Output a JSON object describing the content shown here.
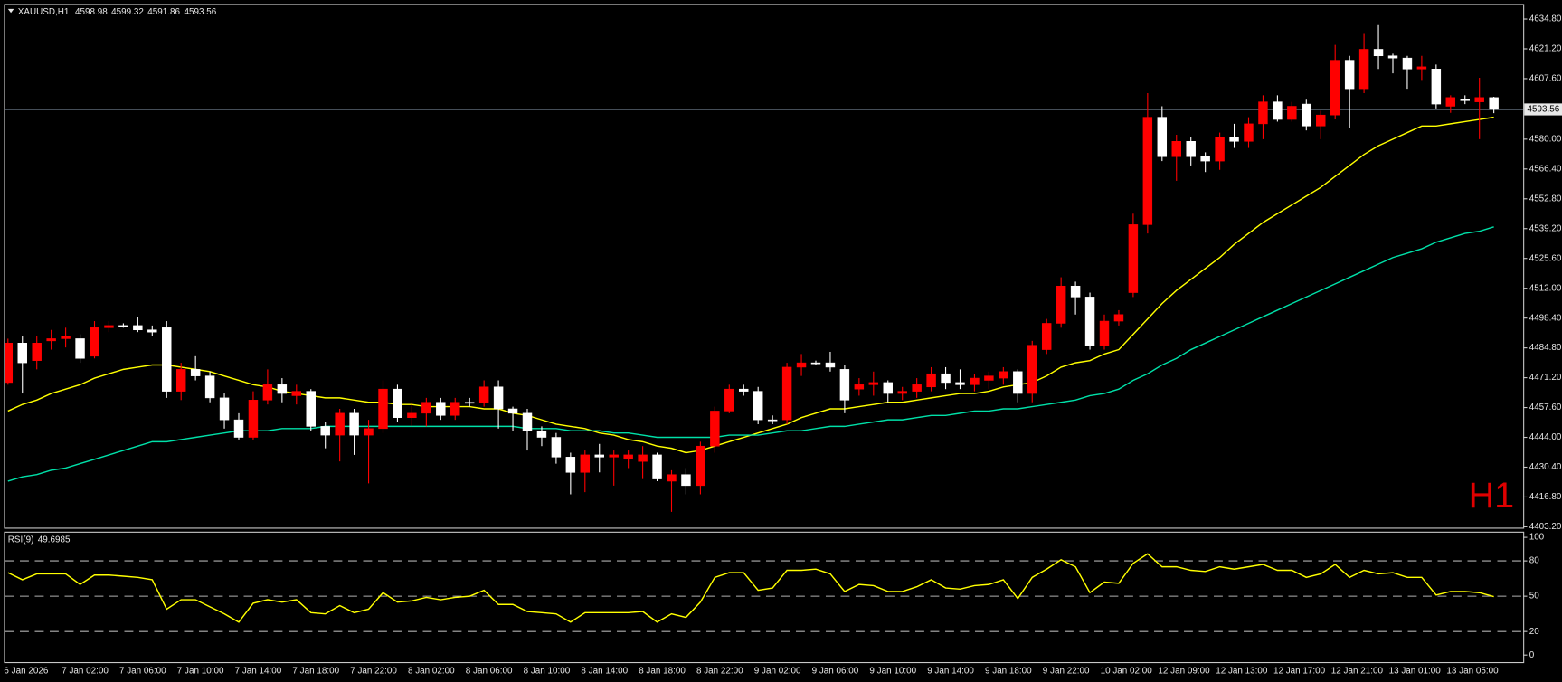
{
  "chart_data": [
    {
      "type": "candlestick",
      "title": "XAUUSD,H1",
      "annotation": "H1",
      "categories": [
        "6 Jan 2026",
        null,
        null,
        null,
        "7 Jan 02:00",
        null,
        null,
        null,
        "7 Jan 06:00",
        null,
        null,
        null,
        "7 Jan 10:00",
        null,
        null,
        null,
        "7 Jan 14:00",
        null,
        null,
        null,
        "7 Jan 18:00",
        null,
        null,
        null,
        "7 Jan 22:00",
        null,
        null,
        null,
        "8 Jan 02:00",
        null,
        null,
        null,
        "8 Jan 06:00",
        null,
        null,
        null,
        "8 Jan 10:00",
        null,
        null,
        null,
        "8 Jan 14:00",
        null,
        null,
        null,
        "8 Jan 18:00",
        null,
        null,
        null,
        "8 Jan 22:00",
        null,
        null,
        null,
        "9 Jan 02:00",
        null,
        null,
        null,
        "9 Jan 06:00",
        null,
        null,
        null,
        "9 Jan 10:00",
        null,
        null,
        null,
        "9 Jan 14:00",
        null,
        null,
        null,
        "9 Jan 18:00",
        null,
        null,
        null,
        "9 Jan 22:00",
        null,
        null,
        null,
        "10 Jan 02:00",
        null,
        null,
        null,
        "12 Jan 09:00",
        null,
        null,
        null,
        "12 Jan 13:00",
        null,
        null,
        null,
        "12 Jan 17:00",
        null,
        null,
        null,
        "12 Jan 21:00",
        null,
        null,
        null,
        "13 Jan 01:00",
        null,
        null,
        null,
        "13 Jan 05:00",
        null,
        null,
        null
      ],
      "open": [
        4469,
        4487,
        4479,
        4488,
        4489,
        4489,
        4481,
        4494,
        4495,
        4495,
        4493,
        4494,
        4465,
        4475,
        4472,
        4462,
        4452,
        4444,
        4461,
        4468,
        4463,
        4465,
        4449,
        4445,
        4455,
        4445,
        4448,
        4466,
        4453,
        4455,
        4460,
        4454,
        4460,
        4460,
        4467,
        4457,
        4455,
        4447,
        4444,
        4435,
        4428,
        4436,
        4435,
        4434,
        4433,
        4436,
        4424,
        4427,
        4422,
        4440,
        4456,
        4466,
        4465,
        4452,
        4452,
        4476,
        4478,
        4478,
        4475,
        4466,
        4468,
        4469,
        4464,
        4465,
        4467,
        4473,
        4469,
        4468,
        4470,
        4471,
        4474,
        4464,
        4484,
        4496,
        4513,
        4508,
        4486,
        4497,
        4510,
        4541,
        4590,
        4572,
        4579,
        4572,
        4570,
        4581,
        4579,
        4587,
        4597,
        4589,
        4596,
        4586,
        4591,
        4616,
        4603,
        4621,
        4618,
        4617,
        4612,
        4612,
        4595,
        4598,
        4597,
        4598.98
      ],
      "high": [
        4489,
        4490,
        4490,
        4493,
        4494,
        4491,
        4497,
        4497,
        4496,
        4499,
        4495,
        4497,
        4478,
        4481,
        4474,
        4464,
        4455,
        4465,
        4475,
        4471,
        4468,
        4466,
        4451,
        4457,
        4457,
        4452,
        4470,
        4468,
        4460,
        4462,
        4462,
        4462,
        4462,
        4470,
        4470,
        4458,
        4457,
        4449,
        4446,
        4437,
        4438,
        4441,
        4438,
        4438,
        4440,
        4437,
        4429,
        4430,
        4442,
        4458,
        4468,
        4468,
        4467,
        4454,
        4478,
        4482,
        4479,
        4483,
        4477,
        4471,
        4474,
        4470,
        4467,
        4471,
        4476,
        4476,
        4475,
        4473,
        4474,
        4476,
        4475,
        4488,
        4498,
        4517,
        4515,
        4510,
        4500,
        4502,
        4546,
        4601,
        4595,
        4582,
        4581,
        4574,
        4583,
        4587,
        4590,
        4600,
        4600,
        4597,
        4598,
        4593,
        4623,
        4618,
        4628,
        4632,
        4619,
        4618,
        4618,
        4614,
        4600,
        4600,
        4608,
        4599.32
      ],
      "low": [
        4468,
        4464,
        4475,
        4484,
        4485,
        4478,
        4480,
        4492,
        4494,
        4492,
        4490,
        4462,
        4461,
        4470,
        4460,
        4448,
        4443,
        4443,
        4459,
        4460,
        4459,
        4447,
        4439,
        4433,
        4436,
        4423,
        4446,
        4451,
        4449,
        4449,
        4452,
        4452,
        4458,
        4458,
        4448,
        4447,
        4438,
        4440,
        4432,
        4418,
        4419,
        4428,
        4422,
        4430,
        4425,
        4424,
        4410,
        4418,
        4418,
        4437,
        4455,
        4463,
        4450,
        4450,
        4450,
        4472,
        4477,
        4474,
        4455,
        4463,
        4463,
        4460,
        4461,
        4462,
        4465,
        4466,
        4466,
        4465,
        4466,
        4468,
        4460,
        4460,
        4482,
        4494,
        4500,
        4484,
        4484,
        4495,
        4508,
        4537,
        4570,
        4561,
        4568,
        4565,
        4566,
        4576,
        4576,
        4580,
        4588,
        4588,
        4584,
        4580,
        4589,
        4585,
        4601,
        4612,
        4610,
        4603,
        4607,
        4594,
        4592,
        4596,
        4580,
        4591.86
      ],
      "close": [
        4487,
        4478,
        4487,
        4489,
        4490,
        4480,
        4494,
        4495,
        4495,
        4493,
        4492,
        4465,
        4475,
        4472,
        4462,
        4452,
        4444,
        4461,
        4468,
        4464,
        4465,
        4449,
        4445,
        4455,
        4445,
        4448,
        4466,
        4453,
        4455,
        4460,
        4454,
        4460,
        4460,
        4467,
        4457,
        4455,
        4447,
        4444,
        4435,
        4428,
        4436,
        4435,
        4436,
        4436,
        4436,
        4425,
        4427,
        4422,
        4440,
        4456,
        4466,
        4465,
        4452,
        4452,
        4476,
        4478,
        4478,
        4476,
        4461,
        4468,
        4469,
        4464,
        4465,
        4468,
        4473,
        4469,
        4468,
        4471,
        4472,
        4474,
        4464,
        4486,
        4496,
        4513,
        4508,
        4486,
        4497,
        4500,
        4541,
        4590,
        4572,
        4579,
        4572,
        4570,
        4581,
        4579,
        4587,
        4597,
        4589,
        4595,
        4586,
        4591,
        4616,
        4603,
        4621,
        4618,
        4617,
        4612,
        4613,
        4596,
        4599,
        4598,
        4599,
        4593.56
      ],
      "up_color": "#ff0000",
      "down_color": "#ffffff",
      "price_line_color": "#8a9bb0",
      "series": [
        {
          "color": "#ffff00",
          "values": [
            4456,
            4459,
            4461,
            4464,
            4466,
            4468,
            4471,
            4473,
            4475,
            4476,
            4477,
            4477,
            4476,
            4475,
            4474,
            4472,
            4470,
            4468,
            4467,
            4465,
            4464,
            4463,
            4462,
            4462,
            4461,
            4460,
            4460,
            4459,
            4459,
            4458,
            4458,
            4458,
            4458,
            4457,
            4457,
            4455,
            4454,
            4452,
            4450,
            4449,
            4448,
            4446,
            4445,
            4443,
            4442,
            4440,
            4439,
            4437,
            4438,
            4440,
            4442,
            4444,
            4446,
            4448,
            4450,
            4453,
            4455,
            4457,
            4457,
            4458,
            4459,
            4460,
            4460,
            4461,
            4462,
            4463,
            4464,
            4464,
            4465,
            4467,
            4468,
            4469,
            4472,
            4476,
            4478,
            4479,
            4482,
            4484,
            4491,
            4498,
            4505,
            4511,
            4516,
            4521,
            4526,
            4532,
            4537,
            4542,
            4546,
            4550,
            4554,
            4558,
            4563,
            4568,
            4573,
            4577,
            4580,
            4583,
            4586,
            4586,
            4587,
            4588,
            4589,
            4590
          ]
        },
        {
          "color": "#00e0a8",
          "values": [
            4424,
            4426,
            4427,
            4429,
            4430,
            4432,
            4434,
            4436,
            4438,
            4440,
            4442,
            4442,
            4443,
            4444,
            4445,
            4446,
            4447,
            4447,
            4447,
            4448,
            4448,
            4448,
            4449,
            4449,
            4449,
            4449,
            4449,
            4449,
            4449,
            4449,
            4449,
            4449,
            4449,
            4449,
            4449,
            4449,
            4448,
            4448,
            4448,
            4447,
            4447,
            4447,
            4446,
            4446,
            4445,
            4444,
            4444,
            4444,
            4444,
            4444,
            4445,
            4445,
            4445,
            4446,
            4447,
            4447,
            4448,
            4449,
            4449,
            4450,
            4451,
            4452,
            4452,
            4453,
            4454,
            4454,
            4455,
            4456,
            4456,
            4457,
            4457,
            4458,
            4459,
            4460,
            4461,
            4463,
            4464,
            4466,
            4470,
            4473,
            4477,
            4480,
            4484,
            4487,
            4490,
            4493,
            4496,
            4499,
            4502,
            4505,
            4508,
            4511,
            4514,
            4517,
            4520,
            4523,
            4526,
            4528,
            4530,
            4533,
            4535,
            4537,
            4538,
            4540
          ]
        }
      ],
      "ylim": [
        4402.8,
        4641.2
      ],
      "yticks": [
        {
          "value": 4634.8,
          "label": "4634.80"
        },
        {
          "value": 4621.2,
          "label": "4621.20"
        },
        {
          "value": 4607.6,
          "label": "4607.60"
        },
        {
          "value": 4580,
          "label": "4580.00"
        },
        {
          "value": 4566.4,
          "label": "4566.40"
        },
        {
          "value": 4552.8,
          "label": "4552.80"
        },
        {
          "value": 4539.2,
          "label": "4539.20"
        },
        {
          "value": 4525.6,
          "label": "4525.60"
        },
        {
          "value": 4512,
          "label": "4512.00"
        },
        {
          "value": 4498.4,
          "label": "4498.40"
        },
        {
          "value": 4484.8,
          "label": "4484.80"
        },
        {
          "value": 4471.2,
          "label": "4471.20"
        },
        {
          "value": 4457.6,
          "label": "4457.60"
        },
        {
          "value": 4444,
          "label": "4444.00"
        },
        {
          "value": 4430.4,
          "label": "4430.40"
        },
        {
          "value": 4416.8,
          "label": "4416.80"
        },
        {
          "value": 4403.2,
          "label": "4403.20"
        }
      ]
    },
    {
      "type": "line",
      "title": "RSI(9)",
      "color": "#ffff00",
      "values": [
        70,
        64,
        69,
        69,
        69,
        60,
        68,
        68,
        67,
        66,
        64,
        39,
        47,
        47,
        41,
        35,
        28,
        44,
        47,
        45,
        47,
        36,
        35,
        42,
        36,
        39,
        53,
        45,
        46,
        49,
        47,
        49,
        50,
        55,
        43,
        43,
        37,
        36,
        35,
        28,
        36,
        36,
        36,
        36,
        37,
        28,
        35,
        32,
        45,
        66,
        70,
        70,
        55,
        57,
        72,
        72,
        73,
        69,
        54,
        60,
        59,
        54,
        54,
        58,
        64,
        57,
        56,
        59,
        60,
        64,
        48,
        66,
        73,
        81,
        75,
        53,
        62,
        61,
        78,
        86,
        75,
        75,
        72,
        71,
        75,
        73,
        75,
        77,
        72,
        72,
        66,
        69,
        77,
        66,
        72,
        69,
        70,
        66,
        66,
        51,
        54,
        54,
        53,
        49.6985
      ],
      "ylim": [
        -6,
        104
      ],
      "yticks": [
        100,
        80,
        50,
        20,
        0
      ],
      "levels": [
        80,
        50,
        20
      ]
    }
  ]
}
